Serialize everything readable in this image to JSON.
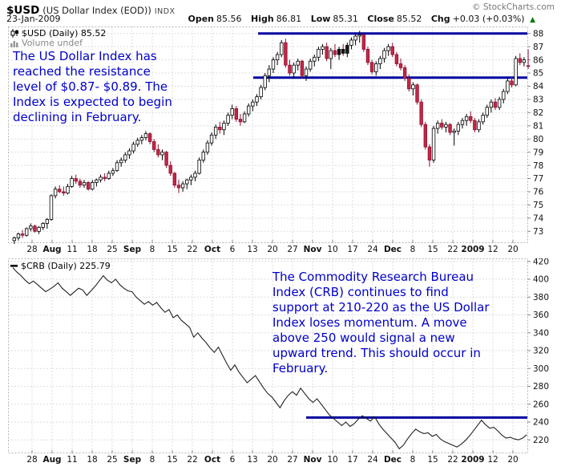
{
  "header": {
    "symbol": "$USD",
    "name": "(US Dollar Index (EOD))",
    "exchange": "INDX",
    "copyright": "© StockCharts.com",
    "date": "23-Jan-2009",
    "quote": [
      {
        "label": "Open",
        "value": "85.56"
      },
      {
        "label": "High",
        "value": "86.81"
      },
      {
        "label": "Low",
        "value": "85.31"
      },
      {
        "label": "Close",
        "value": "85.52"
      },
      {
        "label": "Chg",
        "value": "+0.03 (+0.03%)"
      }
    ],
    "change_direction": "up",
    "change_arrow": "▲"
  },
  "annotations": {
    "usd": "The US Dollar Index has\nreached the resistance\nlevel of $0.87- $0.89.  The\nIndex is expected to begin\ndeclining in February.",
    "crb": "The Commodity Research Bureau\nIndex (CRB) continues to find\nsupport at 210-220 as the US Dollar\nIndex loses momentum.  A move\nabove 250 would signal a new\nupward trend.  This should occur in\nFebruary."
  },
  "colors": {
    "annotation_blue": "#0000c8",
    "trendline_blue": "#0000a0",
    "candle_down_fill": "#c42846",
    "candle_down_stroke": "#8e1030",
    "candle_up_fill": "#ffffff",
    "candle_stroke": "#000000",
    "candle_black_fill": "#1a1a1a",
    "line_series": "#222222",
    "grid": "#dddddd",
    "plot_border": "#b4b4b4",
    "axis_text": "#111111",
    "change_up_green": "#007700",
    "volume_gray": "#888888"
  },
  "x_axis": {
    "labels": [
      "28",
      "Aug",
      "11",
      "18",
      "25",
      "Sep",
      "8",
      "15",
      "22",
      "Oct",
      "6",
      "13",
      "20",
      "27",
      "Nov",
      "10",
      "17",
      "24",
      "Dec",
      "8",
      "15",
      "22",
      "2009",
      "12",
      "20"
    ],
    "bold_labels": [
      "Aug",
      "Sep",
      "Oct",
      "Nov",
      "Dec",
      "2009"
    ]
  },
  "chart_data": [
    {
      "type": "candlestick",
      "symbol": "$USD",
      "period": "Daily",
      "title": "$USD (Daily) 85.52",
      "overlay_label": "Volume undef",
      "last": 85.52,
      "ylim": [
        71.6,
        88.5
      ],
      "y_ticks": [
        73,
        74,
        75,
        76,
        77,
        78,
        79,
        80,
        81,
        82,
        83,
        84,
        85,
        86,
        87,
        88
      ],
      "resistance_levels": [
        88.0,
        84.65
      ],
      "black_days": [
        79,
        80,
        81
      ],
      "ohlc": [
        [
          72.3,
          72.6,
          72.0,
          72.5
        ],
        [
          72.5,
          72.9,
          72.3,
          72.8
        ],
        [
          72.8,
          73.1,
          72.5,
          72.7
        ],
        [
          72.7,
          73.3,
          72.6,
          73.2
        ],
        [
          73.2,
          73.6,
          73.0,
          73.4
        ],
        [
          73.4,
          73.5,
          72.9,
          73.0
        ],
        [
          73.0,
          73.4,
          72.8,
          73.3
        ],
        [
          73.3,
          73.7,
          73.1,
          73.6
        ],
        [
          73.6,
          74.0,
          73.2,
          73.9
        ],
        [
          73.9,
          75.8,
          73.8,
          75.7
        ],
        [
          75.7,
          76.4,
          75.5,
          76.2
        ],
        [
          76.2,
          76.5,
          75.9,
          76.0
        ],
        [
          76.0,
          76.4,
          75.7,
          75.9
        ],
        [
          75.9,
          76.6,
          75.8,
          76.4
        ],
        [
          76.4,
          77.2,
          76.3,
          77.0
        ],
        [
          77.0,
          77.3,
          76.6,
          76.8
        ],
        [
          76.8,
          77.0,
          76.3,
          76.5
        ],
        [
          76.5,
          76.9,
          76.3,
          76.7
        ],
        [
          76.7,
          76.8,
          76.1,
          76.2
        ],
        [
          76.2,
          76.9,
          76.1,
          76.7
        ],
        [
          76.7,
          77.0,
          76.4,
          76.9
        ],
        [
          76.9,
          77.3,
          76.7,
          77.1
        ],
        [
          77.1,
          77.4,
          76.8,
          77.0
        ],
        [
          77.0,
          77.6,
          76.9,
          77.4
        ],
        [
          77.4,
          77.8,
          77.2,
          77.6
        ],
        [
          77.6,
          78.4,
          77.5,
          78.2
        ],
        [
          78.2,
          78.6,
          77.9,
          78.4
        ],
        [
          78.4,
          79.0,
          78.2,
          78.8
        ],
        [
          78.8,
          79.3,
          78.5,
          79.1
        ],
        [
          79.1,
          79.8,
          78.9,
          79.6
        ],
        [
          79.6,
          80.1,
          79.4,
          79.9
        ],
        [
          79.9,
          80.3,
          79.6,
          80.1
        ],
        [
          80.1,
          80.6,
          79.9,
          80.4
        ],
        [
          80.4,
          80.5,
          79.6,
          79.8
        ],
        [
          79.8,
          80.0,
          79.0,
          79.2
        ],
        [
          79.2,
          79.6,
          78.6,
          78.8
        ],
        [
          78.8,
          79.2,
          78.4,
          79.0
        ],
        [
          79.0,
          79.1,
          77.8,
          78.0
        ],
        [
          78.0,
          78.3,
          77.2,
          77.4
        ],
        [
          77.4,
          77.5,
          76.3,
          76.5
        ],
        [
          76.5,
          76.9,
          75.9,
          76.3
        ],
        [
          76.3,
          76.8,
          76.0,
          76.6
        ],
        [
          76.6,
          77.0,
          76.2,
          76.9
        ],
        [
          76.9,
          77.3,
          76.5,
          77.1
        ],
        [
          77.1,
          77.6,
          76.8,
          77.4
        ],
        [
          77.4,
          78.6,
          77.3,
          78.4
        ],
        [
          78.4,
          79.2,
          78.2,
          79.0
        ],
        [
          79.0,
          79.9,
          78.8,
          79.7
        ],
        [
          79.7,
          80.5,
          79.5,
          80.3
        ],
        [
          80.3,
          81.1,
          80.0,
          80.9
        ],
        [
          80.9,
          81.3,
          80.4,
          80.7
        ],
        [
          80.7,
          81.4,
          80.3,
          81.2
        ],
        [
          81.2,
          82.0,
          81.0,
          81.8
        ],
        [
          81.8,
          82.6,
          81.5,
          82.3
        ],
        [
          82.3,
          82.5,
          81.3,
          81.5
        ],
        [
          81.5,
          81.9,
          81.0,
          81.3
        ],
        [
          81.3,
          82.1,
          81.2,
          81.9
        ],
        [
          81.9,
          82.7,
          81.7,
          82.5
        ],
        [
          82.5,
          83.0,
          82.1,
          82.8
        ],
        [
          82.8,
          83.4,
          82.5,
          83.2
        ],
        [
          83.2,
          84.1,
          83.0,
          83.9
        ],
        [
          83.9,
          85.0,
          83.7,
          84.8
        ],
        [
          84.8,
          85.6,
          84.3,
          85.3
        ],
        [
          85.3,
          86.2,
          85.0,
          86.0
        ],
        [
          86.0,
          86.6,
          85.6,
          86.4
        ],
        [
          86.4,
          87.5,
          86.2,
          87.3
        ],
        [
          87.3,
          87.6,
          85.4,
          85.6
        ],
        [
          85.6,
          86.0,
          84.8,
          85.0
        ],
        [
          85.0,
          85.8,
          84.6,
          85.6
        ],
        [
          85.6,
          86.1,
          85.2,
          85.9
        ],
        [
          85.9,
          86.0,
          84.6,
          84.8
        ],
        [
          84.8,
          85.5,
          84.4,
          85.3
        ],
        [
          85.3,
          86.1,
          85.1,
          85.9
        ],
        [
          85.9,
          86.4,
          85.5,
          86.2
        ],
        [
          86.2,
          87.0,
          85.9,
          86.8
        ],
        [
          86.8,
          87.2,
          86.4,
          87.0
        ],
        [
          87.0,
          87.3,
          85.9,
          86.1
        ],
        [
          86.1,
          86.9,
          85.3,
          86.7
        ],
        [
          86.7,
          87.2,
          86.2,
          86.4
        ],
        [
          86.4,
          87.0,
          86.0,
          86.8
        ],
        [
          86.8,
          87.2,
          86.3,
          86.5
        ],
        [
          86.5,
          87.3,
          86.2,
          87.1
        ],
        [
          87.1,
          87.7,
          86.8,
          87.5
        ],
        [
          87.5,
          88.0,
          87.1,
          87.8
        ],
        [
          87.8,
          88.2,
          87.3,
          87.9
        ],
        [
          87.9,
          88.0,
          86.6,
          86.8
        ],
        [
          86.8,
          87.0,
          85.6,
          85.8
        ],
        [
          85.8,
          86.0,
          84.9,
          85.1
        ],
        [
          85.1,
          85.9,
          84.8,
          85.7
        ],
        [
          85.7,
          86.3,
          85.3,
          86.1
        ],
        [
          86.1,
          86.9,
          85.8,
          86.7
        ],
        [
          86.7,
          87.2,
          86.3,
          87.0
        ],
        [
          87.0,
          87.3,
          86.2,
          86.4
        ],
        [
          86.4,
          86.6,
          85.5,
          85.7
        ],
        [
          85.7,
          86.1,
          85.2,
          85.4
        ],
        [
          85.4,
          85.6,
          84.4,
          84.6
        ],
        [
          84.6,
          84.9,
          83.6,
          83.8
        ],
        [
          83.8,
          84.3,
          83.3,
          84.1
        ],
        [
          84.1,
          84.2,
          82.6,
          82.8
        ],
        [
          82.8,
          83.0,
          80.9,
          81.1
        ],
        [
          81.1,
          81.3,
          79.2,
          79.4
        ],
        [
          79.4,
          79.6,
          77.9,
          78.4
        ],
        [
          78.4,
          81.0,
          78.2,
          80.8
        ],
        [
          80.8,
          81.4,
          80.4,
          81.2
        ],
        [
          81.2,
          81.5,
          80.7,
          80.9
        ],
        [
          80.9,
          81.3,
          80.5,
          81.1
        ],
        [
          81.1,
          81.2,
          80.3,
          80.5
        ],
        [
          80.5,
          80.8,
          79.5,
          80.6
        ],
        [
          80.6,
          81.3,
          80.3,
          81.1
        ],
        [
          81.1,
          81.6,
          80.8,
          81.4
        ],
        [
          81.4,
          81.9,
          81.0,
          81.7
        ],
        [
          81.7,
          82.1,
          81.2,
          81.4
        ],
        [
          81.4,
          81.6,
          80.5,
          80.7
        ],
        [
          80.7,
          81.5,
          80.5,
          81.3
        ],
        [
          81.3,
          82.0,
          81.1,
          81.8
        ],
        [
          81.8,
          82.6,
          81.6,
          82.4
        ],
        [
          82.4,
          83.0,
          82.0,
          82.8
        ],
        [
          82.8,
          83.1,
          82.2,
          82.4
        ],
        [
          82.4,
          83.2,
          82.2,
          83.0
        ],
        [
          83.0,
          83.8,
          82.7,
          83.6
        ],
        [
          83.6,
          84.6,
          83.4,
          84.4
        ],
        [
          84.4,
          84.7,
          83.9,
          84.1
        ],
        [
          84.1,
          86.3,
          84.0,
          86.1
        ],
        [
          86.1,
          86.5,
          85.6,
          85.8
        ],
        [
          85.8,
          86.2,
          85.5,
          86.0
        ],
        [
          85.56,
          86.81,
          85.31,
          85.52
        ]
      ]
    },
    {
      "type": "line",
      "symbol": "$CRB",
      "period": "Daily",
      "title": "$CRB (Daily) 225.79",
      "last": 225.79,
      "ylim": [
        205,
        422
      ],
      "y_ticks": [
        220,
        240,
        260,
        280,
        300,
        320,
        340,
        360,
        380,
        400,
        420
      ],
      "support_level": 245,
      "close": [
        413,
        408,
        404,
        399,
        395,
        398,
        394,
        390,
        386,
        389,
        392,
        396,
        390,
        386,
        382,
        386,
        390,
        388,
        382,
        387,
        392,
        398,
        404,
        399,
        396,
        400,
        394,
        390,
        387,
        386,
        380,
        376,
        372,
        375,
        371,
        374,
        368,
        363,
        366,
        357,
        360,
        354,
        350,
        346,
        335,
        340,
        334,
        329,
        323,
        318,
        324,
        315,
        306,
        298,
        304,
        296,
        290,
        284,
        288,
        292,
        285,
        278,
        272,
        268,
        262,
        256,
        264,
        270,
        274,
        270,
        278,
        272,
        266,
        262,
        266,
        260,
        254,
        248,
        244,
        240,
        236,
        240,
        235,
        238,
        243,
        247,
        244,
        241,
        246,
        238,
        232,
        227,
        222,
        217,
        210,
        214,
        221,
        227,
        232,
        229,
        227,
        228,
        224,
        226,
        221,
        218,
        216,
        214,
        212,
        215,
        219,
        224,
        230,
        236,
        242,
        237,
        233,
        234,
        230,
        225,
        222,
        223,
        221,
        220,
        222,
        225.79
      ]
    }
  ]
}
